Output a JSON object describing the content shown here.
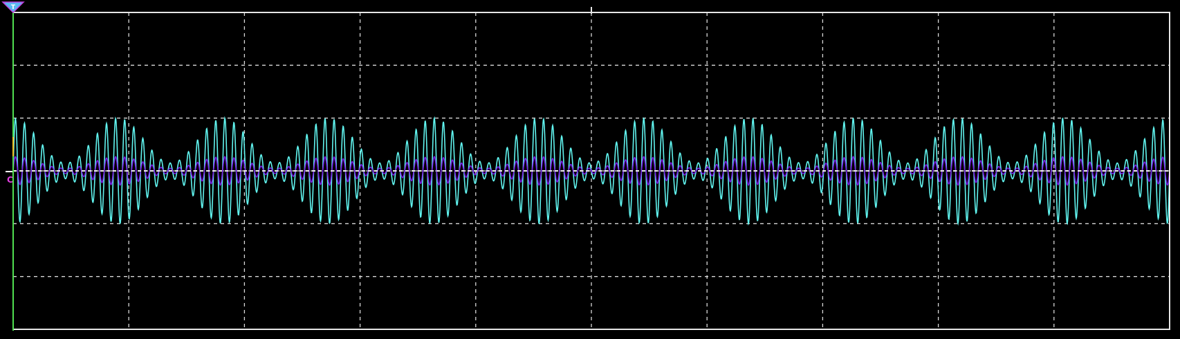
{
  "chart_data": {
    "type": "line",
    "title": "",
    "xlabel": "",
    "ylabel": "",
    "grid": true,
    "divisions": {
      "x": 10,
      "y": 6
    },
    "xlim": [
      0,
      10
    ],
    "ylim": [
      -3,
      3
    ],
    "series": [
      {
        "color": "#61f5f0",
        "carrier_cycles_per_div": 12.7,
        "envelope_cycles_per_div": 1.1,
        "peak_amplitude_div": 1.0,
        "trough_amplitude_div": 0.15
      },
      {
        "color": "#7a1ee6",
        "carrier_cycles_per_div": 12.7,
        "envelope_cycles_per_div": 1.1,
        "peak_amplitude_div": 0.27,
        "trough_amplitude_div": 0.05
      }
    ]
  },
  "markers": {
    "trigger_label": "T",
    "trigger_color": "#c040e0",
    "trigger_fill": "#5ab8f0",
    "channel_marker_label": "C",
    "channel_marker_color": "#e040e0",
    "time_ref_color": "#50e050",
    "level_color": "#f0c020"
  }
}
